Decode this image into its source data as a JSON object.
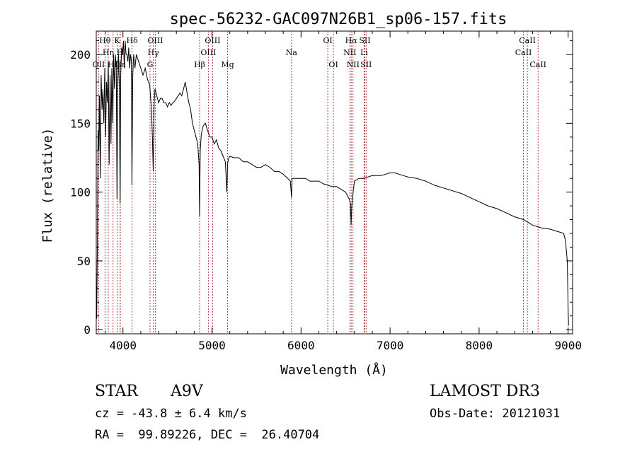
{
  "chart_data": {
    "type": "line",
    "title": "spec-56232-GAC097N26B1_sp06-157.fits",
    "xlabel": "Wavelength (Å)",
    "ylabel": "Flux (relative)",
    "xlim": [
      3700,
      9050
    ],
    "ylim": [
      -3,
      217
    ],
    "x_ticks": [
      4000,
      5000,
      6000,
      7000,
      8000,
      9000
    ],
    "x_tick_labels": [
      "4000",
      "5000",
      "6000",
      "7000",
      "8000",
      "9000"
    ],
    "y_ticks": [
      0,
      50,
      100,
      150,
      200
    ],
    "y_tick_labels": [
      "0",
      "50",
      "100",
      "150",
      "200"
    ],
    "series": [
      {
        "name": "flux",
        "x": [
          3705,
          3712,
          3720,
          3728,
          3735,
          3745,
          3755,
          3765,
          3775,
          3785,
          3795,
          3805,
          3815,
          3825,
          3835,
          3845,
          3855,
          3865,
          3875,
          3885,
          3895,
          3905,
          3915,
          3925,
          3933,
          3940,
          3950,
          3960,
          3968,
          3975,
          3985,
          3995,
          4005,
          4015,
          4025,
          4035,
          4045,
          4055,
          4065,
          4075,
          4085,
          4095,
          4101,
          4110,
          4120,
          4135,
          4150,
          4175,
          4200,
          4225,
          4250,
          4275,
          4300,
          4320,
          4330,
          4340,
          4350,
          4360,
          4380,
          4400,
          4420,
          4440,
          4460,
          4480,
          4500,
          4520,
          4540,
          4560,
          4580,
          4600,
          4620,
          4640,
          4660,
          4680,
          4700,
          4720,
          4740,
          4760,
          4780,
          4800,
          4820,
          4840,
          4855,
          4861,
          4868,
          4880,
          4900,
          4925,
          4950,
          4975,
          5000,
          5025,
          5050,
          5075,
          5100,
          5125,
          5150,
          5167,
          5175,
          5184,
          5200,
          5250,
          5300,
          5350,
          5400,
          5450,
          5500,
          5550,
          5600,
          5650,
          5700,
          5750,
          5800,
          5850,
          5880,
          5893,
          5900,
          5950,
          6000,
          6050,
          6100,
          6150,
          6200,
          6250,
          6300,
          6350,
          6400,
          6450,
          6500,
          6540,
          6555,
          6563,
          6570,
          6585,
          6600,
          6650,
          6700,
          6750,
          6800,
          6850,
          6900,
          6950,
          7000,
          7050,
          7100,
          7150,
          7200,
          7300,
          7400,
          7500,
          7600,
          7700,
          7800,
          7900,
          8000,
          8100,
          8200,
          8300,
          8400,
          8500,
          8600,
          8700,
          8800,
          8850,
          8900,
          8950,
          8970,
          8990,
          9000,
          9005
        ],
        "y": [
          8,
          55,
          145,
          130,
          170,
          110,
          185,
          160,
          175,
          150,
          190,
          140,
          180,
          165,
          195,
          120,
          185,
          135,
          190,
          150,
          200,
          175,
          200,
          190,
          95,
          170,
          200,
          175,
          92,
          185,
          205,
          200,
          210,
          190,
          210,
          200,
          200,
          195,
          205,
          190,
          200,
          195,
          105,
          185,
          200,
          190,
          200,
          195,
          190,
          185,
          190,
          182,
          178,
          160,
          140,
          115,
          165,
          175,
          170,
          165,
          168,
          168,
          165,
          165,
          162,
          165,
          163,
          165,
          166,
          168,
          170,
          172,
          170,
          175,
          180,
          172,
          165,
          160,
          150,
          145,
          140,
          135,
          120,
          82,
          130,
          142,
          148,
          150,
          145,
          140,
          140,
          135,
          138,
          132,
          130,
          126,
          122,
          100,
          120,
          124,
          126,
          125,
          125,
          122,
          122,
          120,
          118,
          118,
          120,
          118,
          115,
          115,
          113,
          110,
          108,
          96,
          110,
          110,
          110,
          110,
          108,
          108,
          108,
          106,
          105,
          104,
          104,
          102,
          100,
          95,
          92,
          76,
          90,
          100,
          108,
          110,
          110,
          111,
          112,
          112,
          112,
          113,
          114,
          114,
          113,
          112,
          111,
          110,
          108,
          105,
          103,
          101,
          99,
          96,
          93,
          90,
          88,
          85,
          82,
          80,
          76,
          74,
          73,
          72,
          71,
          70,
          65,
          50,
          15,
          3
        ]
      }
    ],
    "lines": [
      {
        "name": "Hθ",
        "wl": 3798,
        "row": 1
      },
      {
        "name": "OII",
        "wl": 3727,
        "row": 3
      },
      {
        "name": "Hη",
        "wl": 3835,
        "row": 2
      },
      {
        "name": "Hζ",
        "wl": 3889,
        "row": 3
      },
      {
        "name": "K",
        "wl": 3934,
        "row": 1
      },
      {
        "name": "Hε",
        "wl": 3970,
        "row": 3
      },
      {
        "name": "H",
        "wl": 3968,
        "row": 2
      },
      {
        "name": "Hδ",
        "wl": 4102,
        "row": 1
      },
      {
        "name": "G",
        "wl": 4304,
        "row": 3
      },
      {
        "name": "Hγ",
        "wl": 4341,
        "row": 2
      },
      {
        "name": "OIII",
        "wl": 4363,
        "row": 1
      },
      {
        "name": "Hβ",
        "wl": 4861,
        "row": 3
      },
      {
        "name": "OIII",
        "wl": 4959,
        "row": 2
      },
      {
        "name": "OIII",
        "wl": 5007,
        "row": 1
      },
      {
        "name": "Mg",
        "wl": 5175,
        "row": 3
      },
      {
        "name": "Na",
        "wl": 5893,
        "row": 2
      },
      {
        "name": "OI",
        "wl": 6300,
        "row": 1
      },
      {
        "name": "OI",
        "wl": 6364,
        "row": 3
      },
      {
        "name": "NII",
        "wl": 6548,
        "row": 2
      },
      {
        "name": "Hα",
        "wl": 6563,
        "row": 1
      },
      {
        "name": "NII",
        "wl": 6584,
        "row": 3
      },
      {
        "name": "SII",
        "wl": 6717,
        "row": 1
      },
      {
        "name": "Li",
        "wl": 6708,
        "row": 2
      },
      {
        "name": "SII",
        "wl": 6731,
        "row": 3
      },
      {
        "name": "CaII",
        "wl": 8498,
        "row": 2
      },
      {
        "name": "CaII",
        "wl": 8542,
        "row": 1
      },
      {
        "name": "CaII",
        "wl": 8662,
        "row": 3
      }
    ]
  },
  "info": {
    "object_type": "STAR",
    "subclass": "A9V",
    "survey": "LAMOST DR3",
    "cz": "cz = -43.8 ± 6.4 km/s",
    "obs_date": "Obs-Date: 20121031",
    "coords": "RA =  99.89226, DEC =  26.40704"
  }
}
